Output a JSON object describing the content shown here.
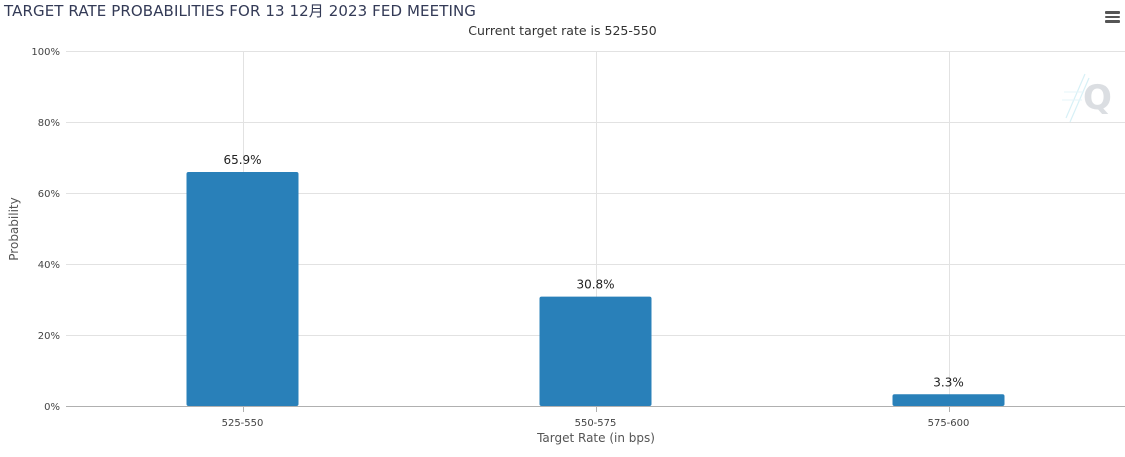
{
  "title": "TARGET RATE PROBABILITIES FOR 13 12月 2023 FED MEETING",
  "subtitle": "Current target rate is 525-550",
  "menu_icon": "hamburger-menu-icon",
  "logo_icon": "q-watermark-logo",
  "colors": {
    "bar": "#2980b9",
    "grid": "#e2e2e2",
    "axis": "#b0b0b0",
    "title": "#333a56"
  },
  "chart_data": {
    "type": "bar",
    "title": "TARGET RATE PROBABILITIES FOR 13 12月 2023 FED MEETING",
    "subtitle": "Current target rate is 525-550",
    "xlabel": "Target Rate (in bps)",
    "ylabel": "Probability",
    "categories": [
      "525-550",
      "550-575",
      "575-600"
    ],
    "values": [
      65.9,
      30.8,
      3.3
    ],
    "data_labels": [
      "65.9%",
      "30.8%",
      "3.3%"
    ],
    "ylim": [
      0,
      100
    ],
    "yticks": [
      0,
      20,
      40,
      60,
      80,
      100
    ],
    "ytick_labels": [
      "0%",
      "20%",
      "40%",
      "60%",
      "80%",
      "100%"
    ],
    "grid": true,
    "legend": "none"
  }
}
